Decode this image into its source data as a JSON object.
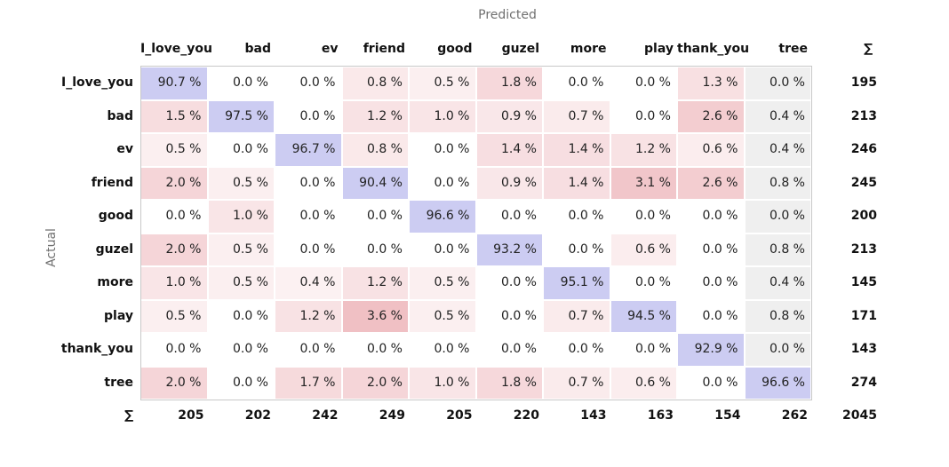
{
  "chart_data": {
    "type": "heatmap",
    "title": "",
    "xlabel": "Predicted",
    "ylabel": "Actual",
    "sum_symbol": "∑",
    "columns": [
      "I_love_you",
      "bad",
      "ev",
      "friend",
      "good",
      "guzel",
      "more",
      "play",
      "thank_you",
      "tree"
    ],
    "rows": [
      "I_love_you",
      "bad",
      "ev",
      "friend",
      "good",
      "guzel",
      "more",
      "play",
      "thank_you",
      "tree"
    ],
    "values": [
      [
        90.7,
        0.0,
        0.0,
        0.8,
        0.5,
        1.8,
        0.0,
        0.0,
        1.3,
        0.0
      ],
      [
        1.5,
        97.5,
        0.0,
        1.2,
        1.0,
        0.9,
        0.7,
        0.0,
        2.6,
        0.4
      ],
      [
        0.5,
        0.0,
        96.7,
        0.8,
        0.0,
        1.4,
        1.4,
        1.2,
        0.6,
        0.4
      ],
      [
        2.0,
        0.5,
        0.0,
        90.4,
        0.0,
        0.9,
        1.4,
        3.1,
        2.6,
        0.8
      ],
      [
        0.0,
        1.0,
        0.0,
        0.0,
        96.6,
        0.0,
        0.0,
        0.0,
        0.0,
        0.0
      ],
      [
        2.0,
        0.5,
        0.0,
        0.0,
        0.0,
        93.2,
        0.0,
        0.6,
        0.0,
        0.8
      ],
      [
        1.0,
        0.5,
        0.4,
        1.2,
        0.5,
        0.0,
        95.1,
        0.0,
        0.0,
        0.4
      ],
      [
        0.5,
        0.0,
        1.2,
        3.6,
        0.5,
        0.0,
        0.7,
        94.5,
        0.0,
        0.8
      ],
      [
        0.0,
        0.0,
        0.0,
        0.0,
        0.0,
        0.0,
        0.0,
        0.0,
        92.9,
        0.0
      ],
      [
        2.0,
        0.0,
        1.7,
        2.0,
        1.0,
        1.8,
        0.7,
        0.6,
        0.0,
        96.6
      ]
    ],
    "value_unit": "%",
    "row_sums": [
      195,
      213,
      246,
      245,
      200,
      213,
      145,
      171,
      143,
      274
    ],
    "column_sums": [
      205,
      202,
      242,
      249,
      205,
      220,
      143,
      163,
      154,
      262
    ],
    "total": 2045,
    "colors": {
      "diagonal": "#ccccf2",
      "off_diagonal_max": "#f0c0c4",
      "off_diagonal_min": "#ffffff",
      "last_column": "#efefef",
      "frame": "#c8c8c8"
    }
  }
}
